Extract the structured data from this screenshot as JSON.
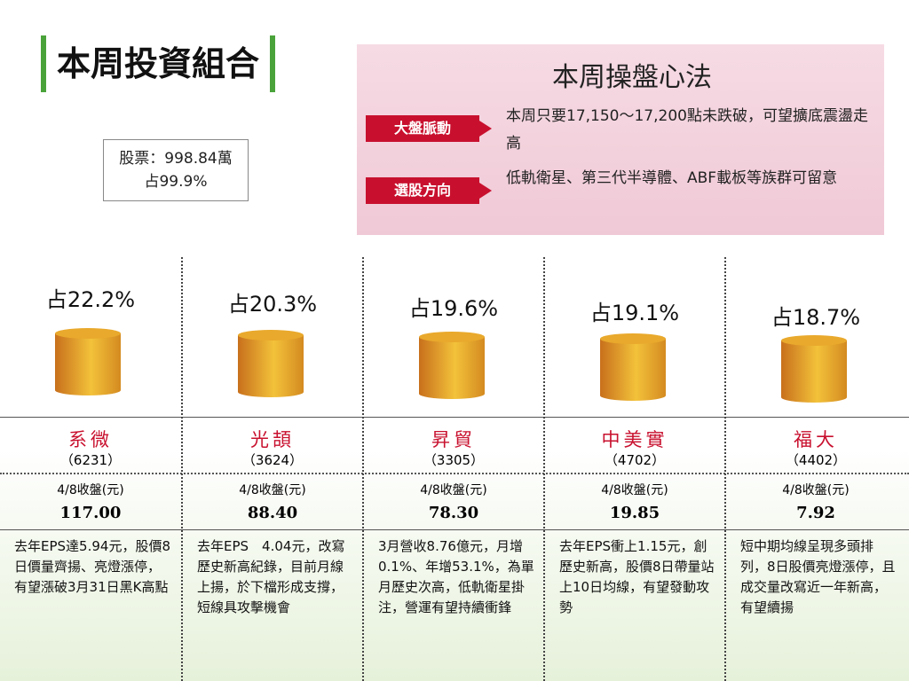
{
  "header": {
    "title": "本周投資組合"
  },
  "holding": {
    "stock": "股票：998.84萬",
    "share": "占99.9%"
  },
  "strategy": {
    "title": "本周操盤心法",
    "rows": [
      {
        "label": "大盤脈動",
        "text": "本周只要17,150～17,200點未跌破，可望擴底震盪走高"
      },
      {
        "label": "選股方向",
        "text": "低軌衛星、第三代半導體、ABF載板等族群可留意"
      }
    ]
  },
  "stocks": [
    {
      "share": "占22.2%",
      "name": "系微",
      "code": "（6231）",
      "close_label": "4/8收盤(元)",
      "price": "117.00",
      "note": "去年EPS達5.94元，股價8日價量齊揚、亮燈漲停，有望漲破3月31日黑K高點"
    },
    {
      "share": "占20.3%",
      "name": "光頡",
      "code": "（3624）",
      "close_label": "4/8收盤(元)",
      "price": "88.40",
      "note": "去年EPS　4.04元，改寫歷史新高紀錄，目前月線上揚，於下檔形成支撐，短線具攻擊機會"
    },
    {
      "share": "占19.6%",
      "name": "昇貿",
      "code": "（3305）",
      "close_label": "4/8收盤(元)",
      "price": "78.30",
      "note": "3月營收8.76億元，月增0.1%、年增53.1%，為單月歷史次高，低軌衛星掛注，營運有望持續衝鋒"
    },
    {
      "share": "占19.1%",
      "name": "中美實",
      "code": "（4702）",
      "close_label": "4/8收盤(元)",
      "price": "19.85",
      "note": "去年EPS衝上1.15元，創歷史新高，股價8日帶量站上10日均線，有望發動攻勢"
    },
    {
      "share": "占18.7%",
      "name": "福大",
      "code": "（4402）",
      "close_label": "4/8收盤(元)",
      "price": "7.92",
      "note": "短中期均線呈現多頭排列，8日股價亮燈漲停，且成交量改寫近一年新高，有望續揚"
    }
  ]
}
